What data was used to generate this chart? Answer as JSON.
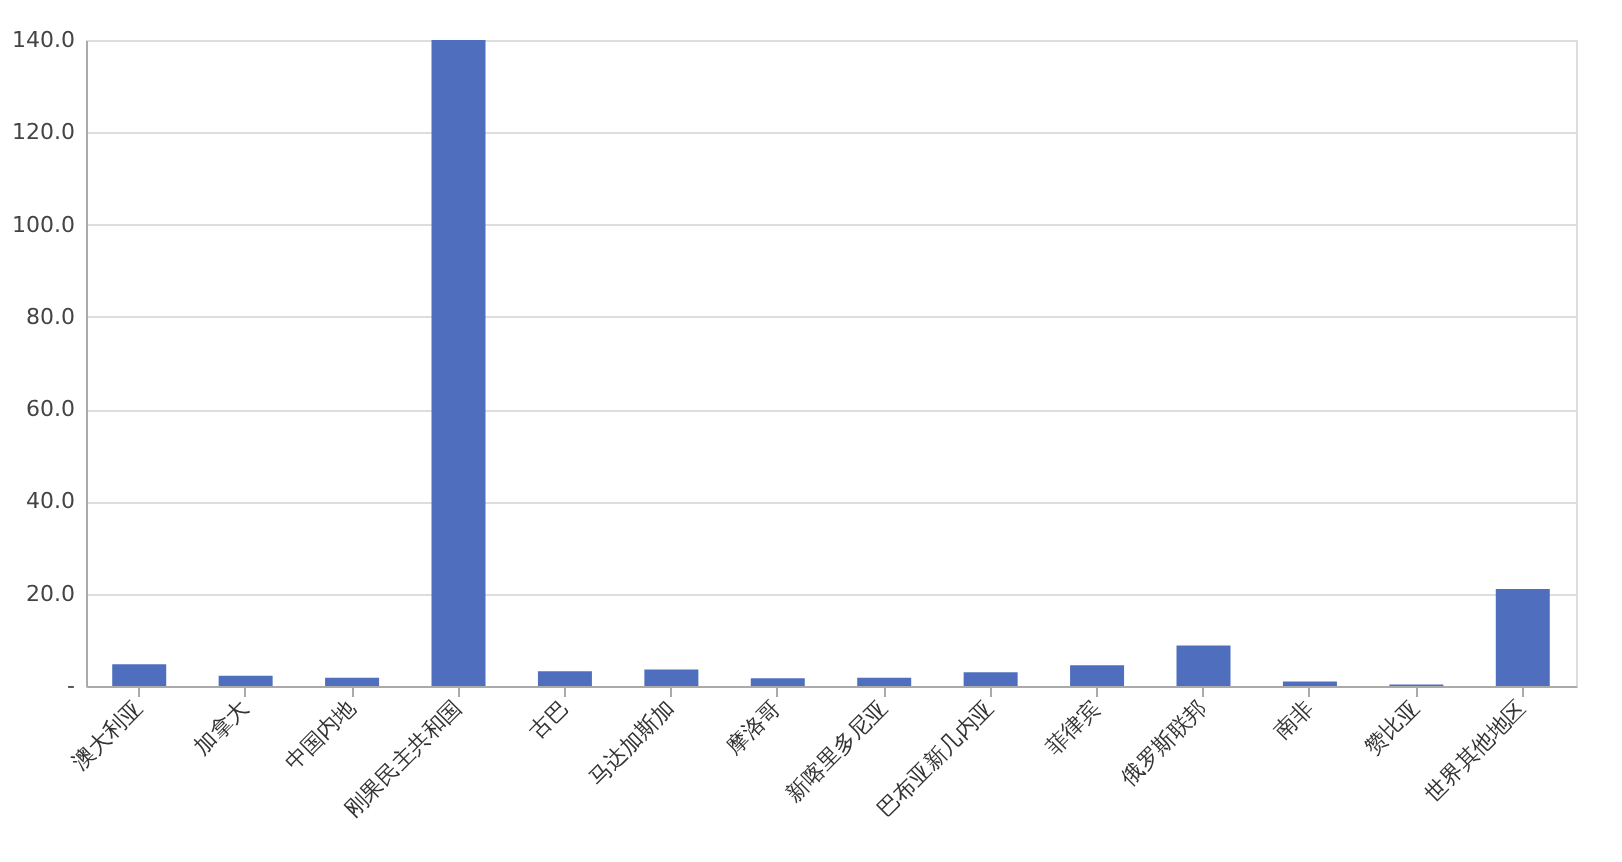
{
  "chart_data": {
    "type": "bar",
    "categories": [
      "澳大利亚",
      "加拿大",
      "中国内地",
      "刚果民主共和国",
      "古巴",
      "马达加斯加",
      "摩洛哥",
      "新喀里多尼亚",
      "巴布亚新几内亚",
      "菲律宾",
      "俄罗斯联邦",
      "南非",
      "赞比亚",
      "世界其他地区"
    ],
    "values": [
      4.7,
      2.2,
      1.8,
      140,
      3.2,
      3.6,
      1.7,
      1.8,
      3.0,
      4.5,
      8.8,
      1.0,
      0.3,
      21
    ],
    "color": "#4f6fbe",
    "ylim": [
      0,
      140
    ],
    "yticks": [
      {
        "value": 0,
        "label": "-"
      },
      {
        "value": 20,
        "label": "20.0"
      },
      {
        "value": 40,
        "label": "40.0"
      },
      {
        "value": 60,
        "label": "60.0"
      },
      {
        "value": 80,
        "label": "80.0"
      },
      {
        "value": 100,
        "label": "100.0"
      },
      {
        "value": 120,
        "label": "120.0"
      },
      {
        "value": 140,
        "label": "140.0"
      }
    ],
    "grid": "y"
  }
}
